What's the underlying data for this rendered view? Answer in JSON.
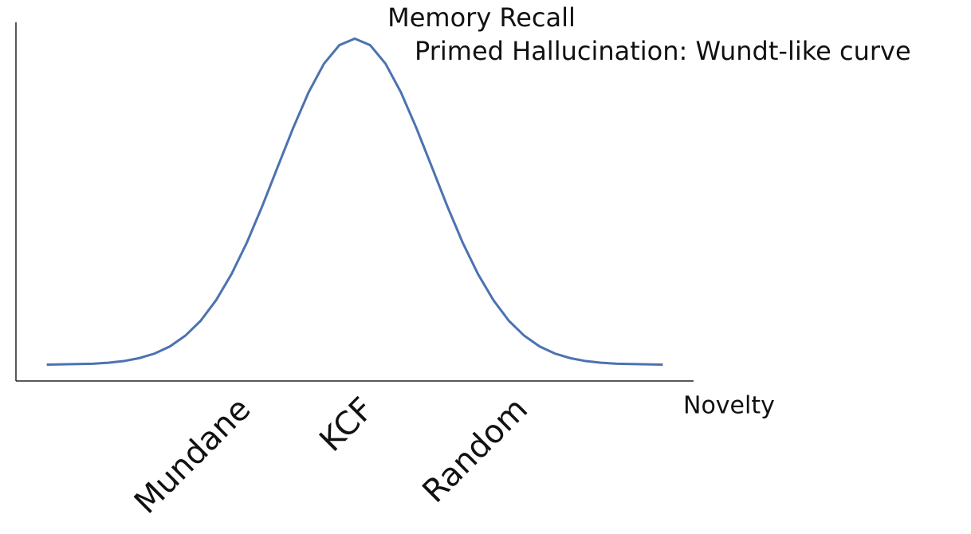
{
  "chart_data": {
    "type": "line",
    "title": "Primed Hallucination: Wundt-like curve",
    "ylabel": "Memory Recall",
    "xlabel": "Novelty",
    "x": [
      -5,
      -4.75,
      -4.5,
      -4.25,
      -4,
      -3.75,
      -3.5,
      -3.25,
      -3,
      -2.75,
      -2.5,
      -2.25,
      -2,
      -1.75,
      -1.5,
      -1.25,
      -1,
      -0.75,
      -0.5,
      -0.25,
      0,
      0.25,
      0.5,
      0.75,
      1,
      1.25,
      1.5,
      1.75,
      2,
      2.25,
      2.5,
      2.75,
      3,
      3.25,
      3.5,
      3.75,
      4,
      4.25,
      4.5,
      4.75,
      5
    ],
    "values": [
      0.0,
      0.001,
      0.002,
      0.003,
      0.006,
      0.011,
      0.02,
      0.034,
      0.056,
      0.089,
      0.135,
      0.198,
      0.278,
      0.375,
      0.487,
      0.607,
      0.726,
      0.835,
      0.923,
      0.98,
      1,
      0.98,
      0.923,
      0.835,
      0.726,
      0.607,
      0.487,
      0.375,
      0.278,
      0.198,
      0.135,
      0.089,
      0.056,
      0.034,
      0.02,
      0.011,
      0.006,
      0.003,
      0.002,
      0.001,
      0.0
    ],
    "color": "#4c72b0",
    "xlim": [
      -5.5,
      5.5
    ],
    "ylim": [
      -0.05,
      1.05
    ],
    "xticks": [
      {
        "value": -2,
        "label": "Mundane"
      },
      {
        "value": 0,
        "label": "KCF"
      },
      {
        "value": 2.5,
        "label": "Random"
      }
    ]
  }
}
